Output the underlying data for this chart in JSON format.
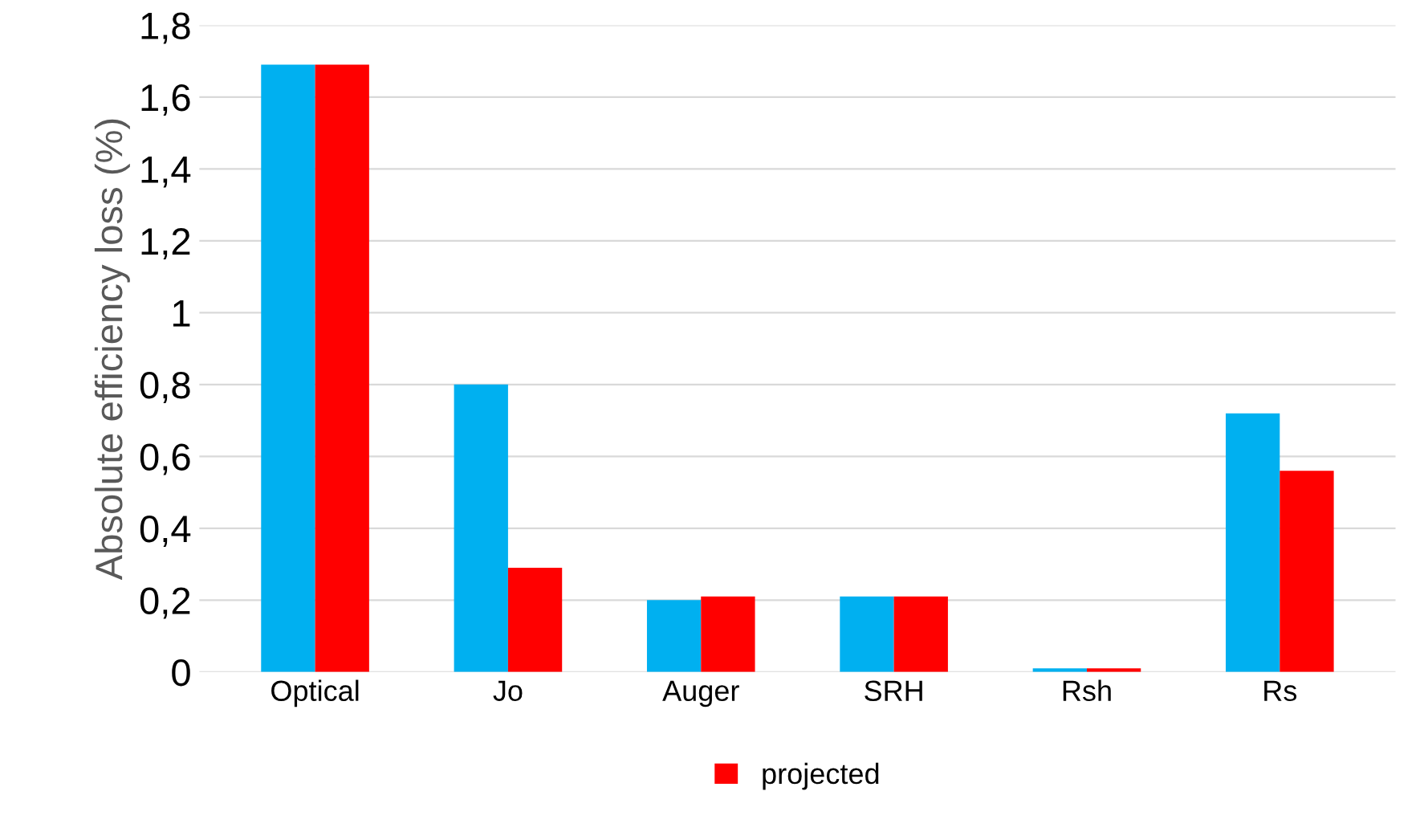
{
  "chart_data": {
    "type": "bar",
    "ylabel": "Absolute efficiency loss (%)",
    "categories": [
      "Optical",
      "Jo",
      "Auger",
      "SRH",
      "Rsh",
      "Rs"
    ],
    "series": [
      {
        "color": "#00b0f0",
        "values": [
          1.69,
          0.8,
          0.2,
          0.21,
          0.01,
          0.72
        ]
      },
      {
        "name": "projected",
        "color": "#ff0000",
        "values": [
          1.69,
          0.29,
          0.21,
          0.21,
          0.01,
          0.56
        ]
      }
    ],
    "ylim": [
      0,
      1.8
    ],
    "yticks": [
      0,
      {
        "value": 0.2,
        "label": "0,2"
      },
      {
        "value": 0.4,
        "label": "0,4"
      },
      {
        "value": 0.6,
        "label": "0,6"
      },
      {
        "value": 0.8,
        "label": "0,8"
      },
      1,
      {
        "value": 1.2,
        "label": "1,2"
      },
      {
        "value": 1.4,
        "label": "1,4"
      },
      {
        "value": 1.6,
        "label": "1,6"
      },
      {
        "value": 1.8,
        "label": "1,8"
      }
    ],
    "grid": "y",
    "legend": "bottom"
  }
}
